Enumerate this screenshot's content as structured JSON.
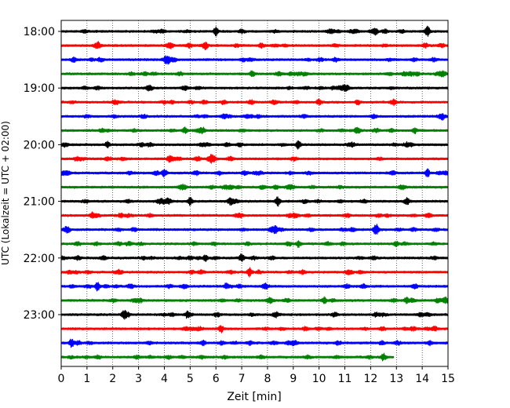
{
  "chart_data": {
    "type": "line",
    "title": "",
    "xlabel": "Zeit  [min]",
    "ylabel": "UTC (Lokalzeit = UTC + 02:00)",
    "xlim": [
      0,
      15
    ],
    "x_ticks": [
      "0",
      "1",
      "2",
      "3",
      "4",
      "5",
      "6",
      "7",
      "8",
      "9",
      "10",
      "11",
      "12",
      "13",
      "14",
      "15"
    ],
    "y_ticks": [
      "18:00",
      "19:00",
      "20:00",
      "21:00",
      "22:00",
      "23:00"
    ],
    "grid": "vertical dotted lines at each minute",
    "trace_interval_minutes": 15,
    "trace_start_times": [
      "18:00",
      "18:15",
      "18:30",
      "18:45",
      "19:00",
      "19:15",
      "19:30",
      "19:45",
      "20:00",
      "20:15",
      "20:30",
      "20:45",
      "21:00",
      "21:15",
      "21:30",
      "21:45",
      "22:00",
      "22:15",
      "22:30",
      "22:45",
      "23:00",
      "23:15",
      "23:30",
      "23:45"
    ],
    "color_cycle": [
      "#000000",
      "#ff0000",
      "#0000ff",
      "#008000"
    ],
    "last_trace_end_minute": 12.9,
    "events": [
      {
        "trace": 0,
        "t": 6.0,
        "amp": 0.55
      },
      {
        "trace": 0,
        "t": 12.2,
        "amp": 0.45
      },
      {
        "trace": 0,
        "t": 14.2,
        "amp": 0.7
      },
      {
        "trace": 1,
        "t": 5.6,
        "amp": 0.45
      },
      {
        "trace": 2,
        "t": 0.5,
        "amp": 0.35
      },
      {
        "trace": 3,
        "t": 7.4,
        "amp": 0.4
      },
      {
        "trace": 3,
        "t": 13.3,
        "amp": 0.35
      },
      {
        "trace": 5,
        "t": 10.0,
        "amp": 0.4
      },
      {
        "trace": 5,
        "t": 11.5,
        "amp": 0.35
      },
      {
        "trace": 7,
        "t": 4.8,
        "amp": 0.4
      },
      {
        "trace": 7,
        "t": 13.7,
        "amp": 0.35
      },
      {
        "trace": 8,
        "t": 1.8,
        "amp": 0.35
      },
      {
        "trace": 8,
        "t": 9.2,
        "amp": 0.5
      },
      {
        "trace": 9,
        "t": 4.2,
        "amp": 0.35
      },
      {
        "trace": 10,
        "t": 4.0,
        "amp": 0.5
      },
      {
        "trace": 10,
        "t": 14.2,
        "amp": 0.55
      },
      {
        "trace": 12,
        "t": 5.0,
        "amp": 0.5
      },
      {
        "trace": 12,
        "t": 8.4,
        "amp": 0.6
      },
      {
        "trace": 12,
        "t": 13.4,
        "amp": 0.5
      },
      {
        "trace": 13,
        "t": 1.2,
        "amp": 0.35
      },
      {
        "trace": 14,
        "t": 8.3,
        "amp": 0.45
      },
      {
        "trace": 14,
        "t": 12.2,
        "amp": 0.55
      },
      {
        "trace": 15,
        "t": 9.2,
        "amp": 0.4
      },
      {
        "trace": 16,
        "t": 5.6,
        "amp": 0.4
      },
      {
        "trace": 16,
        "t": 7.0,
        "amp": 0.5
      },
      {
        "trace": 17,
        "t": 7.3,
        "amp": 0.6
      },
      {
        "trace": 18,
        "t": 1.4,
        "amp": 0.55
      },
      {
        "trace": 18,
        "t": 6.4,
        "amp": 0.35
      },
      {
        "trace": 19,
        "t": 10.2,
        "amp": 0.4
      },
      {
        "trace": 19,
        "t": 13.4,
        "amp": 0.4
      },
      {
        "trace": 20,
        "t": 2.4,
        "amp": 0.4
      },
      {
        "trace": 20,
        "t": 4.9,
        "amp": 0.4
      },
      {
        "trace": 21,
        "t": 6.2,
        "amp": 0.5
      },
      {
        "trace": 22,
        "t": 0.4,
        "amp": 0.55
      },
      {
        "trace": 22,
        "t": 5.5,
        "amp": 0.35
      },
      {
        "trace": 23,
        "t": 12.5,
        "amp": 0.35
      }
    ]
  }
}
